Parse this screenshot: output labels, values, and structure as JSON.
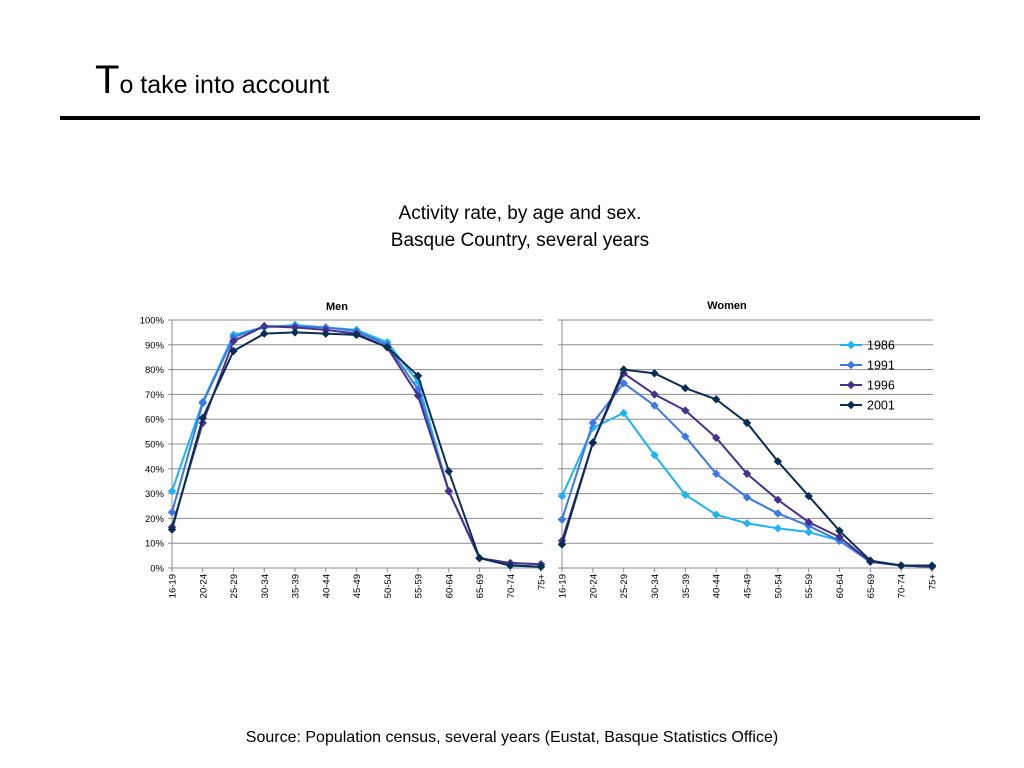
{
  "slide": {
    "title_initial": "T",
    "title_rest": "o take into account",
    "chart_heading_line1": "Activity rate, by age and sex.",
    "chart_heading_line2": "Basque Country, several years",
    "source": "Source:  Population census, several years (Eustat, Basque Statistics Office)"
  },
  "chart_data": [
    {
      "type": "line",
      "title": "Men",
      "xlabel": "",
      "ylabel": "",
      "categories": [
        "16-19",
        "20-24",
        "25-29",
        "30-34",
        "35-39",
        "40-44",
        "45-49",
        "50-54",
        "55-59",
        "60-64",
        "65-69",
        "70-74",
        "75+"
      ],
      "yticks": [
        "0%",
        "10%",
        "20%",
        "30%",
        "40%",
        "50%",
        "60%",
        "70%",
        "80%",
        "90%",
        "100%"
      ],
      "ylim": [
        0,
        100
      ],
      "grid": true,
      "series": [
        {
          "name": "1986",
          "color": "#1EB4F0",
          "values": [
            31,
            67,
            94,
            97,
            98,
            97,
            96,
            91,
            75,
            31,
            4,
            1,
            0.5
          ]
        },
        {
          "name": "1991",
          "color": "#3C78E6",
          "values": [
            22.5,
            66.5,
            93,
            97.5,
            97.5,
            97,
            95.5,
            90,
            72,
            31,
            4,
            2,
            1.5
          ]
        },
        {
          "name": "1996",
          "color": "#46328C",
          "values": [
            16.5,
            58.5,
            91.5,
            97.5,
            97,
            96,
            94.5,
            89,
            69.5,
            31,
            4,
            2,
            1.5
          ]
        },
        {
          "name": "2001",
          "color": "#0A2D55",
          "values": [
            15.5,
            60.5,
            87.5,
            94.5,
            95,
            94.5,
            94,
            89,
            77.5,
            39,
            4,
            1,
            0.5
          ]
        }
      ]
    },
    {
      "type": "line",
      "title": "Women",
      "xlabel": "",
      "ylabel": "",
      "categories": [
        "16-19",
        "20-24",
        "25-29",
        "30-34",
        "35-39",
        "40-44",
        "45-49",
        "50-54",
        "55-59",
        "60-64",
        "65-69",
        "70-74",
        "75+"
      ],
      "ylim": [
        0,
        100
      ],
      "grid": true,
      "legend": "top-right",
      "series": [
        {
          "name": "1986",
          "color": "#1EB4F0",
          "values": [
            29,
            56.5,
            62.5,
            45.5,
            29.5,
            21.5,
            18,
            16,
            14.5,
            11,
            2.5,
            1,
            0.5
          ]
        },
        {
          "name": "1991",
          "color": "#3C78E6",
          "values": [
            19.5,
            58.5,
            74.5,
            65.5,
            53,
            38,
            28.5,
            22,
            17,
            11,
            2.5,
            1,
            0.5
          ]
        },
        {
          "name": "1996",
          "color": "#46328C",
          "values": [
            11,
            50.5,
            78.5,
            70,
            63.5,
            52.5,
            38,
            27.5,
            18.5,
            12.5,
            2.5,
            1,
            0.5
          ]
        },
        {
          "name": "2001",
          "color": "#0A2D55",
          "values": [
            9.5,
            50.5,
            80,
            78.5,
            72.5,
            68,
            58.5,
            43,
            29,
            15,
            3,
            1,
            1
          ]
        }
      ]
    }
  ]
}
